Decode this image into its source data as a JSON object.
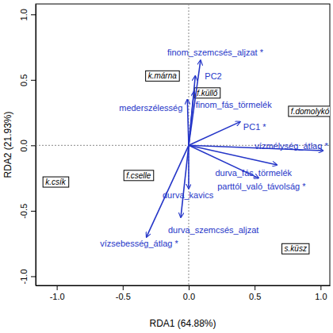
{
  "chart_data": {
    "type": "biplot",
    "xlabel": "RDA1 (64.88%)",
    "ylabel": "RDA2 (21.93%)",
    "xlim": [
      -1.16,
      1.07
    ],
    "ylim": [
      -1.07,
      1.08
    ],
    "xticks": [
      {
        "value": -1,
        "label": "-1.0"
      },
      {
        "value": -0.5,
        "label": "-0.5"
      },
      {
        "value": 0,
        "label": "0.0"
      },
      {
        "value": 0.5,
        "label": "0.5"
      },
      {
        "value": 1,
        "label": "1.0"
      }
    ],
    "yticks": [
      {
        "value": -1,
        "label": "-1.0"
      },
      {
        "value": -0.5,
        "label": "-0.5"
      },
      {
        "value": 0,
        "label": "0.0"
      },
      {
        "value": 0.5,
        "label": "0.5"
      },
      {
        "value": 1,
        "label": "1.0"
      }
    ],
    "reference_lines": {
      "x": 0,
      "y": 0
    },
    "vectors": {
      "color": "#2536c8",
      "labels": [
        "finom_szemcsés_aljzat *",
        "PC2",
        "mederszélesség",
        "finom_fás_törmelék",
        "PC1 *",
        "vízmélység_átlag *",
        "durva_fás_törmelék",
        "parttól_való_távolság *",
        "durva_kavics",
        "durva_szemcsés_aljzat",
        "vízsebesség_átlag *"
      ],
      "x": [
        0.09,
        0.05,
        -0.01,
        0.04,
        0.39,
        1.02,
        0.67,
        0.53,
        0.0,
        -0.06,
        -0.32
      ],
      "y": [
        0.65,
        0.53,
        0.35,
        0.41,
        0.18,
        -0.04,
        -0.15,
        -0.25,
        -0.33,
        -0.55,
        -0.7
      ]
    },
    "sites": {
      "labels": [
        "k.márna",
        "f.küllő",
        "f.domolykó",
        "k.csík",
        "f.cselle",
        "s.küsz"
      ],
      "x": [
        -0.2,
        0.14,
        0.92,
        -1.01,
        -0.38,
        0.81
      ],
      "y": [
        0.53,
        0.4,
        0.26,
        -0.28,
        -0.23,
        -0.79
      ]
    }
  }
}
